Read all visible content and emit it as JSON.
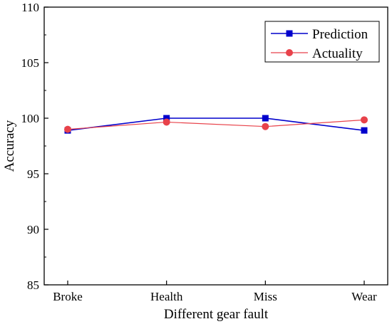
{
  "chart_data": {
    "type": "line",
    "xlabel": "Different gear fault",
    "ylabel": "Accuracy",
    "categories": [
      "Broke",
      "Health",
      "Miss",
      "Wear"
    ],
    "ylim": [
      85,
      110
    ],
    "yticks": [
      85,
      90,
      95,
      100,
      105,
      110
    ],
    "grid": false,
    "legend_position": "top-right",
    "series": [
      {
        "name": "Prediction",
        "values": [
          98.9,
          100.0,
          100.0,
          98.9
        ],
        "color": "#0000cc",
        "marker": "square"
      },
      {
        "name": "Actuality",
        "values": [
          99.0,
          99.65,
          99.25,
          99.85
        ],
        "color": "#e8424a",
        "marker": "circle"
      }
    ]
  }
}
